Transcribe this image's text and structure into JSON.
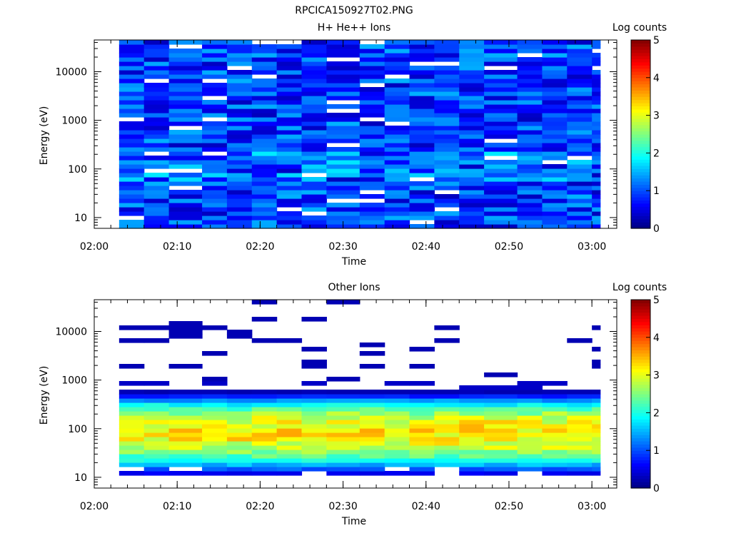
{
  "figure": {
    "filename": "RPCICA150927T02.PNG"
  },
  "chart_data": [
    {
      "type": "heatmap",
      "title": "H+ He++ Ions",
      "xlabel": "Time",
      "ylabel": "Energy (eV)",
      "x_ticks": [
        "02:00",
        "02:10",
        "02:20",
        "02:30",
        "02:40",
        "02:50",
        "03:00"
      ],
      "xlim": [
        "02:00",
        "03:03"
      ],
      "y_scale": "log",
      "y_ticks": [
        "10",
        "100",
        "1000",
        "10000"
      ],
      "ylim": [
        6,
        45000
      ],
      "colorbar": {
        "label": "Log counts",
        "ticks": [
          "0",
          "1",
          "2",
          "3",
          "4",
          "5"
        ],
        "range": [
          0,
          5
        ],
        "colormap": "jet"
      },
      "time_bins": [
        "02:03",
        "02:06",
        "02:09",
        "02:13",
        "02:16",
        "02:19",
        "02:22",
        "02:25",
        "02:28",
        "02:32",
        "02:35",
        "02:38",
        "02:41",
        "02:44",
        "02:47",
        "02:51",
        "02:54",
        "02:57",
        "03:00"
      ],
      "data_time_start": "02:03",
      "data_time_end": "03:01",
      "typical_log_counts": [
        0.3,
        1.5
      ],
      "peak_energy_range_eV": [
        60,
        250
      ],
      "peak_log_counts": 1.8,
      "empty_bins": "scattered white bins (no counts) throughout",
      "seed": 7
    },
    {
      "type": "heatmap",
      "title": "Other Ions",
      "xlabel": "Time",
      "ylabel": "Energy (eV)",
      "x_ticks": [
        "02:00",
        "02:10",
        "02:20",
        "02:30",
        "02:40",
        "02:50",
        "03:00"
      ],
      "xlim": [
        "02:00",
        "03:03"
      ],
      "y_scale": "log",
      "y_ticks": [
        "10",
        "100",
        "1000",
        "10000"
      ],
      "ylim": [
        6,
        45000
      ],
      "colorbar": {
        "label": "Log counts",
        "ticks": [
          "0",
          "1",
          "2",
          "3",
          "4",
          "5"
        ],
        "range": [
          0,
          5
        ],
        "colormap": "jet"
      },
      "time_bins": [
        "02:03",
        "02:06",
        "02:09",
        "02:13",
        "02:16",
        "02:19",
        "02:22",
        "02:25",
        "02:28",
        "02:32",
        "02:35",
        "02:38",
        "02:41",
        "02:44",
        "02:47",
        "02:51",
        "02:54",
        "02:57",
        "03:00"
      ],
      "data_time_start": "02:03",
      "data_time_end": "03:01",
      "band_energy_range_eV": [
        10,
        600
      ],
      "peak_energy_eV": 90,
      "peak_log_counts": 3.6,
      "sparse_high_energy_lines_eV": [
        1000,
        40000
      ],
      "seed": 11
    }
  ]
}
